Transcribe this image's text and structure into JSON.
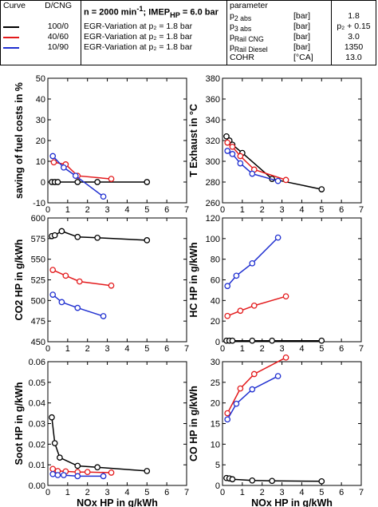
{
  "legend": {
    "col_curve": "Curve",
    "col_dcng": "D/CNG",
    "header": "n = 2000 min⁻¹; IMEP_HP = 6.0 bar",
    "curves": [
      {
        "ratio": "100/0",
        "desc": "EGR-Variation at p₂ = 1.8 bar",
        "color": "#000000"
      },
      {
        "ratio": "40/60",
        "desc": "EGR-Variation at p₂ = 1.8 bar",
        "color": "#e31a1c"
      },
      {
        "ratio": "10/90",
        "desc": "EGR-Variation at p₂ = 1.8 bar",
        "color": "#1f2fd0"
      }
    ],
    "param_title": "parameter",
    "params": [
      {
        "name": "p2 abs",
        "unit": "[bar]",
        "value": "1.8"
      },
      {
        "name": "p3 abs",
        "unit": "[bar]",
        "value": "p₂ + 0.15"
      },
      {
        "name": "pRail CNG",
        "unit": "[bar]",
        "value": "3.0"
      },
      {
        "name": "pRail Diesel",
        "unit": "[bar]",
        "value": "1350"
      },
      {
        "name": "COHR",
        "unit": "[°CA]",
        "value": "13.0"
      }
    ]
  },
  "chart_data": [
    {
      "type": "line",
      "ylabel": "saving of fuel costs in %",
      "xlim": [
        0,
        7
      ],
      "ylim": [
        -10,
        50
      ],
      "xticks": [
        0,
        1,
        2,
        3,
        4,
        5,
        6,
        7
      ],
      "yticks": [
        -10,
        0,
        10,
        20,
        30,
        40,
        50
      ],
      "show_xticklabels": true,
      "series": [
        {
          "name": "100/0",
          "x": [
            0.2,
            0.35,
            0.5,
            1.5,
            2.5,
            5.0
          ],
          "y": [
            0,
            0,
            0,
            0,
            0,
            0
          ]
        },
        {
          "name": "40/60",
          "x": [
            0.3,
            0.9,
            1.5,
            3.2
          ],
          "y": [
            9.5,
            8.5,
            3,
            1.5
          ]
        },
        {
          "name": "10/90",
          "x": [
            0.25,
            0.8,
            1.4,
            2.8
          ],
          "y": [
            12.5,
            7,
            3,
            -7
          ]
        }
      ]
    },
    {
      "type": "line",
      "ylabel": "T Exhaust in °C",
      "xlim": [
        0,
        7
      ],
      "ylim": [
        260,
        380
      ],
      "xticks": [
        0,
        1,
        2,
        3,
        4,
        5,
        6,
        7
      ],
      "yticks": [
        260,
        280,
        300,
        320,
        340,
        360,
        380
      ],
      "show_xticklabels": true,
      "series": [
        {
          "name": "100/0",
          "x": [
            0.2,
            0.35,
            0.5,
            1.0,
            2.5,
            5.0
          ],
          "y": [
            324,
            320,
            316,
            308,
            283,
            273
          ]
        },
        {
          "name": "40/60",
          "x": [
            0.25,
            0.5,
            0.9,
            1.6,
            3.2
          ],
          "y": [
            318,
            314,
            305,
            292,
            282
          ]
        },
        {
          "name": "10/90",
          "x": [
            0.25,
            0.5,
            0.9,
            1.5,
            2.8
          ],
          "y": [
            310,
            307,
            298,
            288,
            281
          ]
        }
      ]
    },
    {
      "type": "line",
      "ylabel": "CO2 HP in g/kWh",
      "xlim": [
        0,
        7
      ],
      "ylim": [
        450,
        600
      ],
      "xticks": [
        0,
        1,
        2,
        3,
        4,
        5,
        6,
        7
      ],
      "yticks": [
        450,
        475,
        500,
        525,
        550,
        575,
        600
      ],
      "show_xticklabels": true,
      "series": [
        {
          "name": "100/0",
          "x": [
            0.2,
            0.35,
            0.7,
            1.5,
            2.5,
            5.0
          ],
          "y": [
            578,
            579,
            584,
            577,
            576,
            573
          ]
        },
        {
          "name": "40/60",
          "x": [
            0.25,
            0.9,
            1.6,
            3.2
          ],
          "y": [
            537,
            530,
            523,
            518
          ]
        },
        {
          "name": "10/90",
          "x": [
            0.25,
            0.7,
            1.5,
            2.8
          ],
          "y": [
            507,
            498,
            491,
            481
          ]
        }
      ]
    },
    {
      "type": "line",
      "ylabel": "HC HP in g/kWh",
      "xlim": [
        0,
        7
      ],
      "ylim": [
        0,
        120
      ],
      "xticks": [
        0,
        1,
        2,
        3,
        4,
        5,
        6,
        7
      ],
      "yticks": [
        0,
        20,
        40,
        60,
        80,
        100,
        120
      ],
      "show_xticklabels": true,
      "series": [
        {
          "name": "100/0",
          "x": [
            0.2,
            0.35,
            0.5,
            1.5,
            2.5,
            5.0
          ],
          "y": [
            1,
            1,
            1,
            1,
            1,
            1
          ]
        },
        {
          "name": "40/60",
          "x": [
            0.25,
            0.9,
            1.6,
            3.2
          ],
          "y": [
            25,
            30,
            35,
            44
          ]
        },
        {
          "name": "10/90",
          "x": [
            0.25,
            0.7,
            1.5,
            2.8
          ],
          "y": [
            54,
            64,
            76,
            101
          ]
        }
      ]
    },
    {
      "type": "line",
      "ylabel": "Soot HP in g/kWh",
      "xlabel": "NOx HP in g/kWh",
      "xlim": [
        0,
        7
      ],
      "ylim": [
        0,
        0.06
      ],
      "xticks": [
        0,
        1,
        2,
        3,
        4,
        5,
        6,
        7
      ],
      "yticks": [
        0,
        0.01,
        0.02,
        0.03,
        0.04,
        0.05,
        0.06
      ],
      "ytick_labels": [
        "0.00",
        "0.01",
        "0.02",
        "0.03",
        "0.04",
        "0.05",
        "0.06"
      ],
      "show_xticklabels": true,
      "series": [
        {
          "name": "100/0",
          "x": [
            0.2,
            0.35,
            0.6,
            1.5,
            2.5,
            5.0
          ],
          "y": [
            0.033,
            0.0205,
            0.0135,
            0.0095,
            0.0088,
            0.007
          ]
        },
        {
          "name": "40/60",
          "x": [
            0.25,
            0.5,
            0.9,
            1.5,
            2.0,
            3.2
          ],
          "y": [
            0.008,
            0.007,
            0.0068,
            0.0065,
            0.0065,
            0.0062
          ]
        },
        {
          "name": "10/90",
          "x": [
            0.25,
            0.5,
            0.8,
            1.5,
            2.8
          ],
          "y": [
            0.0055,
            0.005,
            0.005,
            0.0045,
            0.0045
          ]
        }
      ]
    },
    {
      "type": "line",
      "ylabel": "CO HP in g/kWh",
      "xlabel": "NOx HP in g/kWh",
      "xlim": [
        0,
        7
      ],
      "ylim": [
        0,
        30
      ],
      "xticks": [
        0,
        1,
        2,
        3,
        4,
        5,
        6,
        7
      ],
      "yticks": [
        0,
        5,
        10,
        15,
        20,
        25,
        30
      ],
      "show_xticklabels": true,
      "series": [
        {
          "name": "100/0",
          "x": [
            0.2,
            0.35,
            0.5,
            1.5,
            2.5,
            5.0
          ],
          "y": [
            1.8,
            1.7,
            1.5,
            1.2,
            1.1,
            1.0
          ]
        },
        {
          "name": "40/60",
          "x": [
            0.25,
            0.9,
            1.6,
            3.2
          ],
          "y": [
            17.5,
            23.5,
            27,
            31
          ]
        },
        {
          "name": "10/90",
          "x": [
            0.25,
            0.7,
            1.5,
            2.8
          ],
          "y": [
            16,
            19.8,
            23.3,
            26.5
          ]
        }
      ]
    }
  ]
}
